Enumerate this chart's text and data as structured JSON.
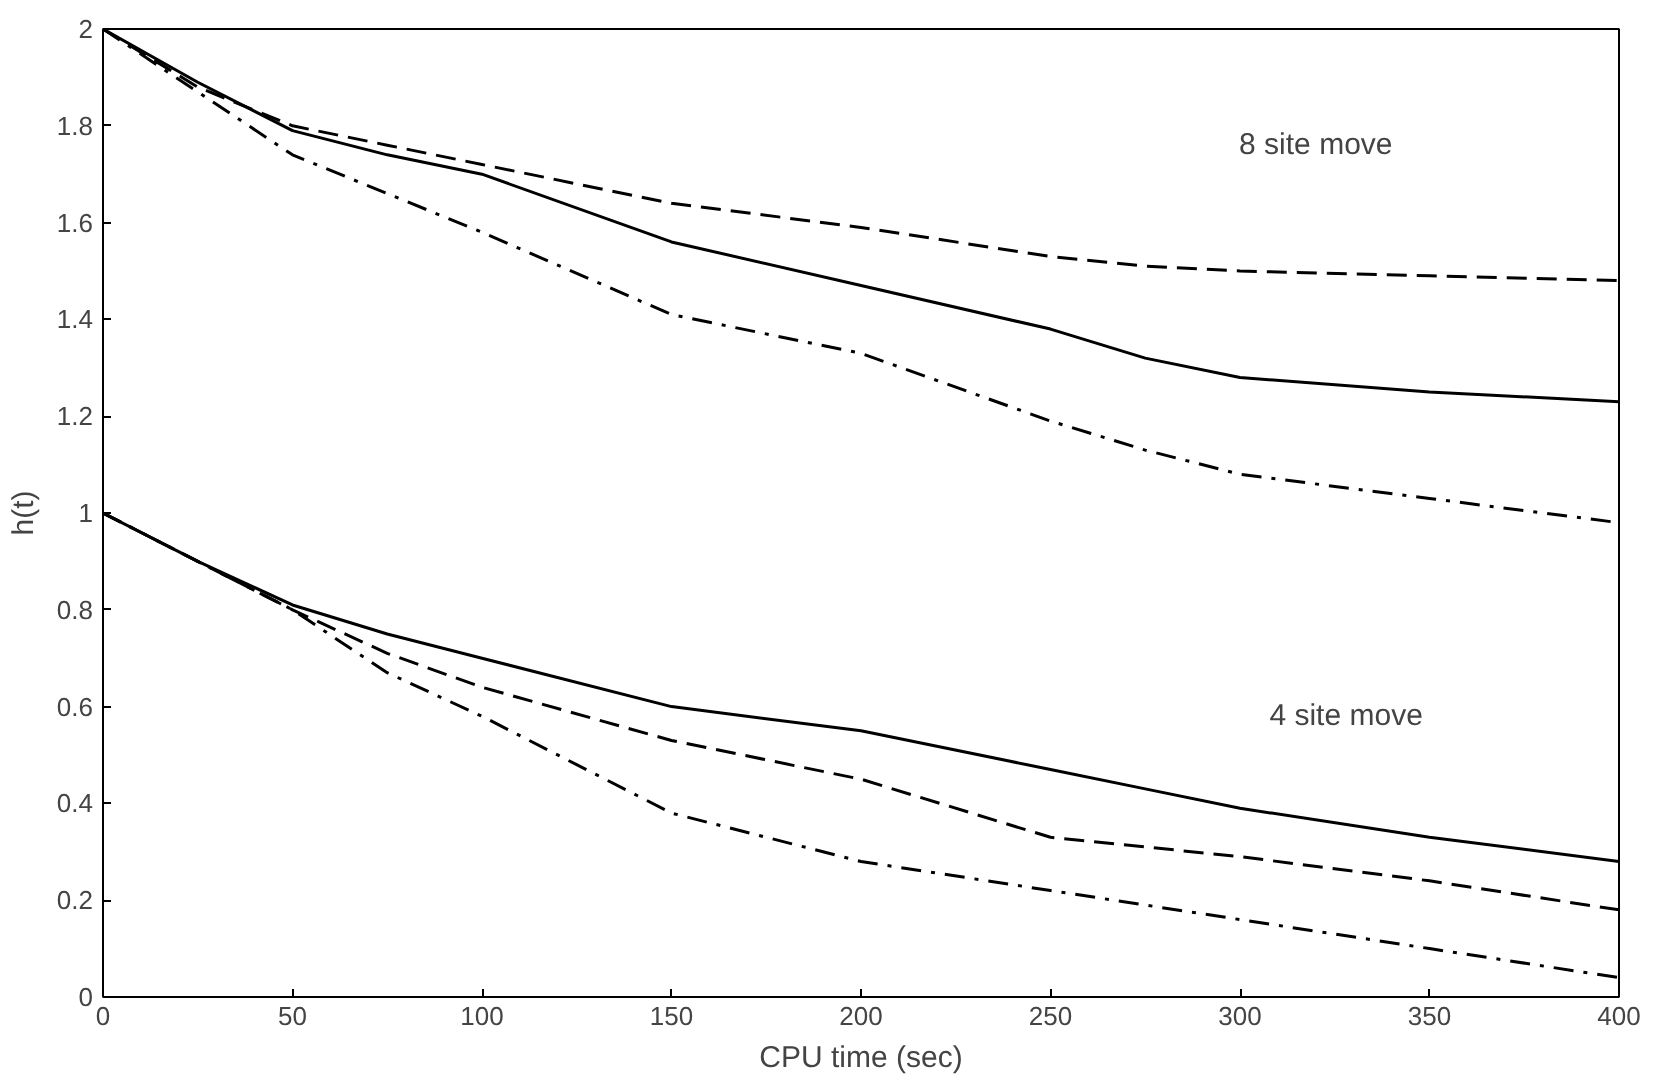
{
  "chart_data": {
    "type": "line",
    "xlabel": "CPU time (sec)",
    "ylabel": "h(t)",
    "xlim": [
      0,
      400
    ],
    "ylim": [
      0,
      2
    ],
    "xticks": [
      0,
      50,
      100,
      150,
      200,
      250,
      300,
      350,
      400
    ],
    "yticks": [
      0,
      0.2,
      0.4,
      0.6,
      0.8,
      1,
      1.2,
      1.4,
      1.6,
      1.8,
      2
    ],
    "grid": false,
    "marker": "none",
    "x": [
      0,
      25,
      50,
      75,
      100,
      150,
      200,
      250,
      275,
      300,
      350,
      400
    ],
    "series": [
      {
        "color": "#000000",
        "line_style": "solid",
        "values": [
          2.0,
          1.89,
          1.79,
          1.74,
          1.7,
          1.56,
          1.47,
          1.38,
          1.32,
          1.28,
          1.25,
          1.23
        ]
      },
      {
        "color": "#000000",
        "line_style": "dashed",
        "values": [
          2.0,
          1.88,
          1.8,
          1.76,
          1.72,
          1.64,
          1.59,
          1.53,
          1.51,
          1.5,
          1.49,
          1.48
        ]
      },
      {
        "color": "#000000",
        "line_style": "dashdot",
        "values": [
          2.0,
          1.87,
          1.74,
          1.66,
          1.58,
          1.41,
          1.33,
          1.19,
          1.13,
          1.08,
          1.03,
          0.98
        ]
      },
      {
        "color": "#000000",
        "line_style": "solid",
        "values": [
          1.0,
          0.9,
          0.81,
          0.75,
          0.7,
          0.6,
          0.55,
          0.47,
          0.43,
          0.39,
          0.33,
          0.28
        ]
      },
      {
        "color": "#000000",
        "line_style": "dashed",
        "values": [
          1.0,
          0.9,
          0.8,
          0.71,
          0.64,
          0.53,
          0.45,
          0.33,
          0.31,
          0.29,
          0.24,
          0.18
        ]
      },
      {
        "color": "#000000",
        "line_style": "dashdot",
        "values": [
          1.0,
          0.9,
          0.8,
          0.67,
          0.58,
          0.38,
          0.28,
          0.22,
          0.19,
          0.16,
          0.1,
          0.04
        ]
      }
    ],
    "annotations": [
      "8 site move",
      "4 site move"
    ]
  }
}
